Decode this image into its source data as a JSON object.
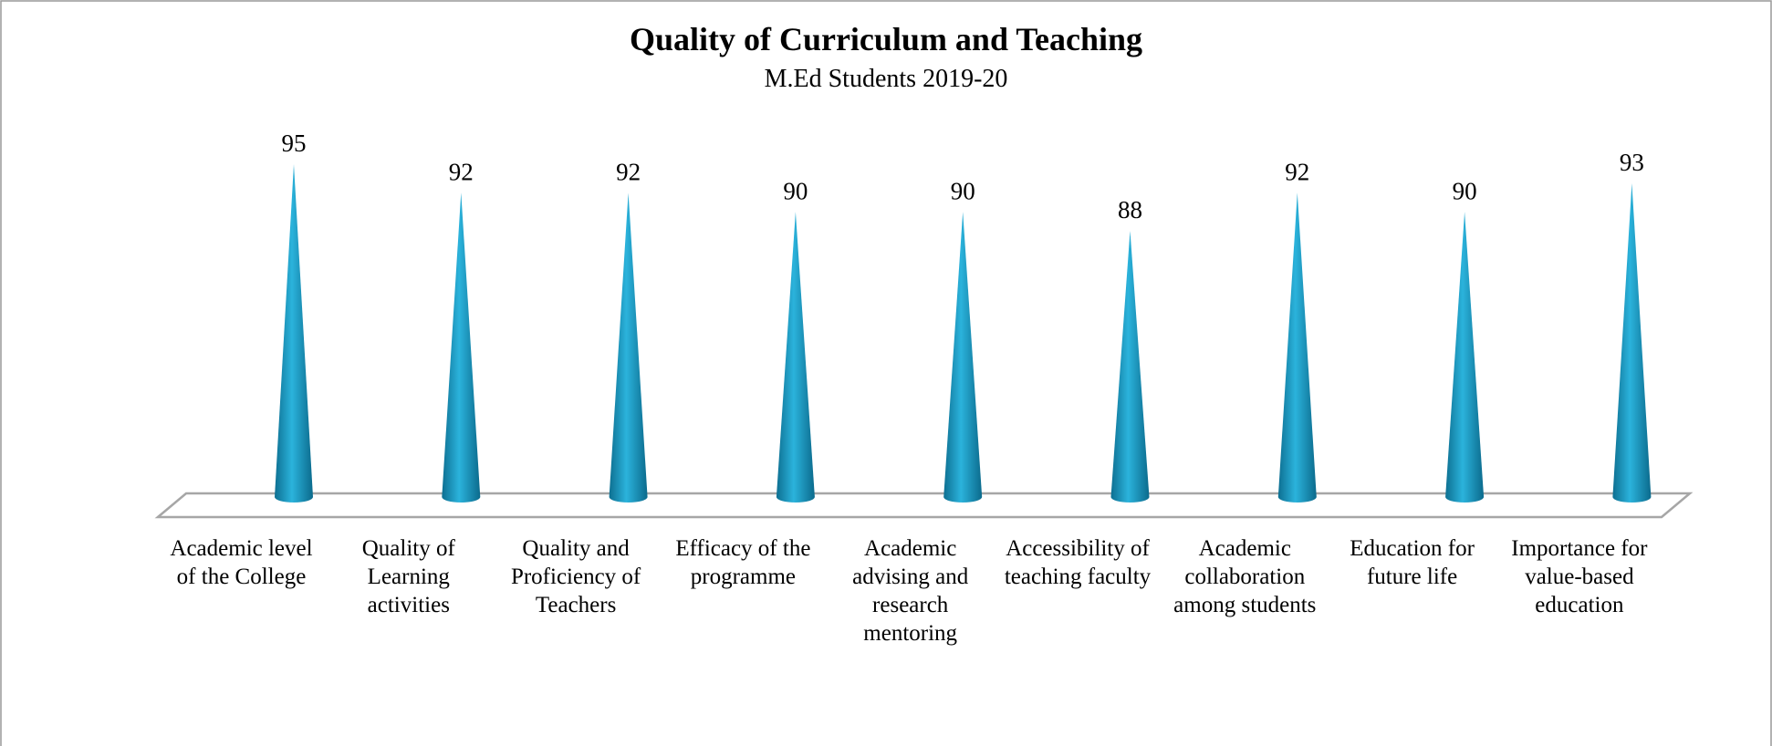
{
  "chart_data": {
    "type": "cone",
    "title": "Quality of Curriculum and Teaching",
    "subtitle": "M.Ed Students 2019-20",
    "categories": [
      "Academic level of the College",
      "Quality of Learning activities",
      "Quality and Proficiency of Teachers",
      "Efficacy of the programme",
      "Academic advising and research mentoring",
      "Accessibility of teaching faculty",
      "Academic collaboration among students",
      "Education for future life",
      "Importance for value-based education"
    ],
    "values": [
      95,
      92,
      92,
      90,
      90,
      88,
      92,
      90,
      93
    ],
    "color": "#1f9bc4",
    "ylim": [
      60,
      100
    ]
  }
}
